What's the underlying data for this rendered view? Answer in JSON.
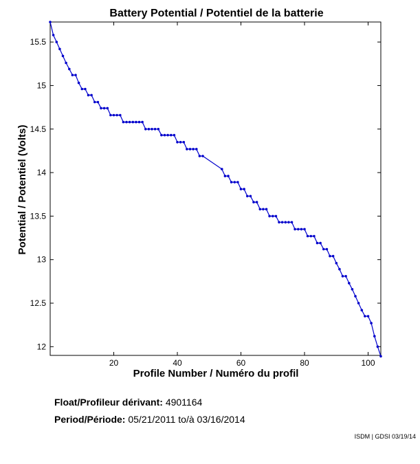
{
  "chart_data": {
    "type": "line",
    "title": "Battery Potential / Potentiel de la batterie",
    "xlabel": "Profile Number / Numéro du profil",
    "ylabel": "Potential / Potentiel (Volts)",
    "xlim": [
      0,
      104
    ],
    "ylim": [
      11.9,
      15.73
    ],
    "xticks": [
      20,
      40,
      60,
      80,
      100
    ],
    "yticks": [
      12,
      12.5,
      13,
      13.5,
      14,
      14.5,
      15,
      15.5
    ],
    "grid": false,
    "color": "#0000cc",
    "x": [
      0,
      1,
      2,
      3,
      4,
      5,
      6,
      7,
      8,
      9,
      10,
      11,
      12,
      13,
      14,
      15,
      16,
      17,
      18,
      19,
      20,
      21,
      22,
      23,
      24,
      25,
      26,
      27,
      28,
      29,
      30,
      31,
      32,
      33,
      34,
      35,
      36,
      37,
      38,
      39,
      40,
      41,
      42,
      43,
      44,
      45,
      46,
      47,
      48,
      54,
      55,
      56,
      57,
      58,
      59,
      60,
      61,
      62,
      63,
      64,
      65,
      66,
      67,
      68,
      69,
      70,
      71,
      72,
      73,
      74,
      75,
      76,
      77,
      78,
      79,
      80,
      81,
      82,
      83,
      84,
      85,
      86,
      87,
      88,
      89,
      90,
      91,
      92,
      93,
      94,
      95,
      96,
      97,
      98,
      99,
      100,
      101,
      102,
      103,
      104
    ],
    "values": [
      15.73,
      15.58,
      15.5,
      15.42,
      15.34,
      15.26,
      15.19,
      15.12,
      15.12,
      15.03,
      14.96,
      14.96,
      14.89,
      14.89,
      14.81,
      14.81,
      14.74,
      14.74,
      14.74,
      14.66,
      14.66,
      14.66,
      14.66,
      14.58,
      14.58,
      14.58,
      14.58,
      14.58,
      14.58,
      14.58,
      14.5,
      14.5,
      14.5,
      14.5,
      14.5,
      14.43,
      14.43,
      14.43,
      14.43,
      14.43,
      14.35,
      14.35,
      14.35,
      14.27,
      14.27,
      14.27,
      14.27,
      14.19,
      14.19,
      14.04,
      13.96,
      13.96,
      13.89,
      13.89,
      13.89,
      13.81,
      13.81,
      13.73,
      13.73,
      13.66,
      13.66,
      13.58,
      13.58,
      13.58,
      13.5,
      13.5,
      13.5,
      13.43,
      13.43,
      13.43,
      13.43,
      13.43,
      13.35,
      13.35,
      13.35,
      13.35,
      13.27,
      13.27,
      13.27,
      13.19,
      13.19,
      13.12,
      13.12,
      13.04,
      13.04,
      12.96,
      12.89,
      12.81,
      12.81,
      12.73,
      12.66,
      12.58,
      12.5,
      12.42,
      12.35,
      12.35,
      12.27,
      12.12,
      12.0,
      11.89
    ]
  },
  "info": {
    "float_label": "Float/Profileur dérivant:",
    "float_value": "4901164",
    "period_label": "Period/Période:",
    "period_start": "05/21/2011",
    "period_sep": "to/à",
    "period_end": "03/16/2014"
  },
  "credit": "ISDM | GDSI 03/19/14"
}
